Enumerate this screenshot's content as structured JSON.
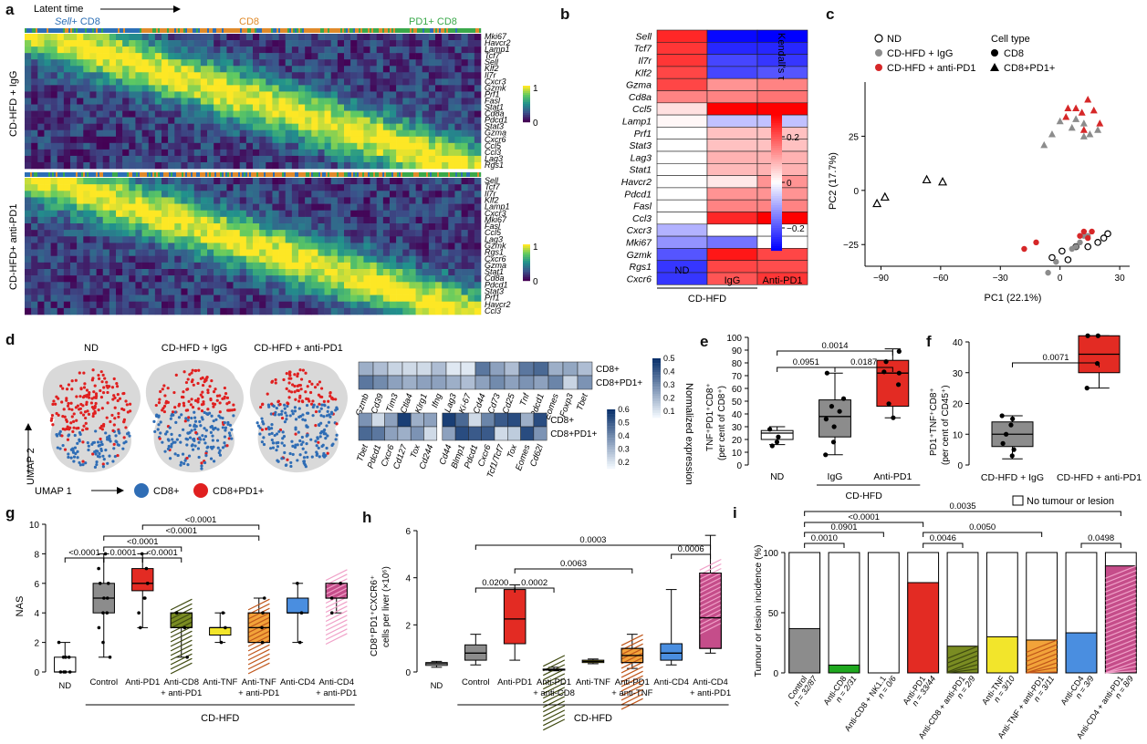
{
  "panel_labels": {
    "a": "a",
    "b": "b",
    "c": "c",
    "d": "d",
    "e": "e",
    "f": "f",
    "g": "g",
    "h": "h",
    "i": "i"
  },
  "panel_a": {
    "latent_time": "Latent time",
    "stage_sell": "Sell",
    "stage_sell_suffix": "+ CD8",
    "stage_cd8": "CD8",
    "stage_pd1": "PD1+ CD8",
    "group1": "CD-HFD + IgG",
    "group2": "CD-HFD+ anti-PD1",
    "genes1": [
      "Mki67",
      "Havcr2",
      "Lamp1",
      "Tcf7",
      "Sell",
      "Klf2",
      "Il7r",
      "Cxcr3",
      "Gzmk",
      "Prf1",
      "Fasl",
      "Stat1",
      "Cd8a",
      "Pdcd1",
      "Stat3",
      "Gzma",
      "Cxcr6",
      "Ccl5",
      "Ccl3",
      "Lag3",
      "Rgs1"
    ],
    "genes2": [
      "Sell",
      "Tcf7",
      "Il7r",
      "Klf2",
      "Lamp1",
      "Cxcr3",
      "Mki67",
      "Fasl",
      "Ccl5",
      "Lag3",
      "Gzmk",
      "Rgs1",
      "Cxcr6",
      "Gzma",
      "Stat1",
      "Cd8a",
      "Pdcd1",
      "Stat3",
      "Prf1",
      "Havcr2",
      "Ccl3"
    ],
    "colorbar_max": "1",
    "colorbar_min": "0"
  },
  "panel_b": {
    "genes": [
      "Sell",
      "Tcf7",
      "Il7r",
      "Klf2",
      "Gzma",
      "Cd8a",
      "Ccl5",
      "Lamp1",
      "Prf1",
      "Stat3",
      "Lag3",
      "Stat1",
      "Havcr2",
      "Pdcd1",
      "Fasl",
      "Ccl3",
      "Cxcr3",
      "Mki67",
      "Gzmk",
      "Rgs1",
      "Cxcr6"
    ],
    "columns": [
      "ND",
      "IgG",
      "Anti-PD1"
    ],
    "group": "CD-HFD",
    "colorbar_title": "Kendall's τ",
    "colorbar_ticks": [
      "0.2",
      "0",
      "−0.2"
    ],
    "values": [
      [
        0.28,
        -0.32,
        -0.33
      ],
      [
        0.26,
        -0.28,
        -0.28
      ],
      [
        0.26,
        -0.24,
        -0.26
      ],
      [
        0.24,
        -0.24,
        -0.22
      ],
      [
        0.24,
        0.14,
        0.16
      ],
      [
        0.16,
        0.16,
        0.18
      ],
      [
        0.04,
        0.33,
        0.33
      ],
      [
        0.01,
        -0.08,
        -0.08
      ],
      [
        0.0,
        0.08,
        0.08
      ],
      [
        0.0,
        0.08,
        0.08
      ],
      [
        0.0,
        0.1,
        0.1
      ],
      [
        0.0,
        0.09,
        0.1
      ],
      [
        0.0,
        0.03,
        0.14
      ],
      [
        0.0,
        0.14,
        0.14
      ],
      [
        0.0,
        0.16,
        0.16
      ],
      [
        0.0,
        0.28,
        0.33
      ],
      [
        -0.1,
        0.0,
        0.0
      ],
      [
        -0.14,
        -0.18,
        0.0
      ],
      [
        -0.22,
        0.3,
        0.24
      ],
      [
        -0.26,
        0.24,
        0.23
      ],
      [
        -0.26,
        0.22,
        0.26
      ]
    ]
  },
  "panel_c": {
    "legend": {
      "nd": "ND",
      "igg": "CD-HFD + IgG",
      "apd1": "CD-HFD + anti-PD1",
      "celltype": "Cell type",
      "cd8": "CD8",
      "cd8pd1": "CD8+PD1+"
    },
    "xlabel": "PC1 (22.1%)",
    "ylabel": "PC2 (17.7%)",
    "xticks": [
      "−90",
      "−60",
      "−30",
      "0",
      "30"
    ],
    "yticks": [
      "25",
      "0",
      "−25"
    ],
    "colors": {
      "nd": "#ffffff",
      "igg": "#8c8c8c",
      "apd1": "#d62728"
    }
  },
  "chart_data": [
    {
      "type": "scatter",
      "panel": "c",
      "xlabel": "PC1 (22.1%)",
      "ylabel": "PC2 (17.7%)",
      "xlim": [
        -98,
        35
      ],
      "ylim": [
        -35,
        50
      ],
      "series": [
        {
          "name": "ND",
          "marker": "circle",
          "points": [
            [
              24,
              -20
            ],
            [
              22,
              -22
            ],
            [
              19,
              -24
            ],
            [
              14,
              -26
            ],
            [
              8,
              -26
            ],
            [
              1,
              -28
            ],
            [
              4,
              -32
            ],
            [
              -4,
              -31
            ]
          ]
        },
        {
          "name": "ND",
          "marker": "triangle",
          "points": [
            [
              -92,
              -6
            ],
            [
              -88,
              -3
            ],
            [
              -67,
              5
            ],
            [
              -59,
              4
            ]
          ]
        },
        {
          "name": "CD-HFD + IgG",
          "marker": "circle",
          "points": [
            [
              12,
              -21
            ],
            [
              14,
              -21
            ],
            [
              10,
              -24
            ],
            [
              8,
              -26
            ],
            [
              6,
              -27
            ],
            [
              -2,
              -33
            ],
            [
              -6,
              -38
            ]
          ]
        },
        {
          "name": "CD-HFD + IgG",
          "marker": "triangle",
          "points": [
            [
              -8,
              21
            ],
            [
              -4,
              26
            ],
            [
              0,
              32
            ],
            [
              6,
              29
            ],
            [
              8,
              33
            ],
            [
              12,
              31
            ],
            [
              15,
              26
            ],
            [
              19,
              28
            ],
            [
              12,
              25
            ]
          ]
        },
        {
          "name": "CD-HFD + anti-PD1",
          "marker": "circle",
          "points": [
            [
              12,
              -19
            ],
            [
              16,
              -19
            ],
            [
              14,
              -22
            ],
            [
              -12,
              -24
            ],
            [
              -18,
              -27
            ],
            [
              10,
              -21
            ]
          ]
        },
        {
          "name": "CD-HFD + anti-PD1",
          "marker": "triangle",
          "points": [
            [
              3,
              34
            ],
            [
              8,
              38
            ],
            [
              14,
              42
            ],
            [
              17,
              37
            ],
            [
              11,
              36
            ],
            [
              20,
              31
            ],
            [
              12,
              28
            ],
            [
              4,
              38
            ]
          ]
        }
      ]
    },
    {
      "type": "heatmap",
      "panel": "d",
      "rows": [
        "CD8+",
        "CD8+PD1+"
      ],
      "columns": [
        "Gzmb",
        "Cd39",
        "Tim3",
        "Ctla4",
        "Klrg1",
        "Ifng",
        "Lag3",
        "Ki-67",
        "Cd44",
        "Cd73",
        "Cd25",
        "Tnf",
        "Pdcd1",
        "Eomes",
        "Foxp3",
        "Tbet"
      ],
      "values": [
        [
          0.25,
          0.2,
          0.12,
          0.1,
          0.1,
          0.2,
          0.05,
          0.05,
          0.45,
          0.3,
          0.2,
          0.45,
          0.5,
          0.25,
          0.28,
          0.2
        ],
        [
          0.45,
          0.38,
          0.3,
          0.25,
          0.3,
          0.3,
          0.25,
          0.2,
          0.3,
          0.38,
          0.3,
          0.35,
          0.3,
          0.4,
          0.12,
          0.35
        ]
      ],
      "colorbar_ticks": [
        "0.5",
        "0.4",
        "0.3",
        "0.2",
        "0.1"
      ]
    },
    {
      "type": "heatmap",
      "panel": "d",
      "rows": [
        "CD8+",
        "CD8+PD1+"
      ],
      "columns": [
        "Tbet",
        "Pdcd1",
        "Cxcr6",
        "Cd127",
        "Tox",
        "Cd244",
        "Cd44",
        "Blmp1",
        "Pdcd1",
        "Cxcr6",
        "Tcf1/Tcf7",
        "Tox",
        "Eomes",
        "Cd62l"
      ],
      "values": [
        [
          0.35,
          0.1,
          0.3,
          0.65,
          0.25,
          0.3,
          0.65,
          0.5,
          0.1,
          0.4,
          0.55,
          0.6,
          0.25,
          0.6
        ],
        [
          0.5,
          0.45,
          0.3,
          0.25,
          0.35,
          0.1,
          0.3,
          0.6,
          0.55,
          0.55,
          0.1,
          0.15,
          0.6,
          0.35
        ]
      ],
      "colorbar_ticks": [
        "0.6",
        "0.5",
        "0.4",
        "0.3",
        "0.2"
      ]
    },
    {
      "type": "box",
      "panel": "e",
      "categories": [
        "ND",
        "IgG",
        "Anti-PD1"
      ],
      "ylabel": "TNF+PD1+CD8+ (per cent of CD8+)",
      "ylim": [
        0,
        100
      ],
      "box": [
        [
          16,
          20,
          25,
          27,
          30
        ],
        [
          8,
          22,
          38,
          51,
          72
        ],
        [
          37,
          46,
          72,
          82,
          91
        ]
      ],
      "points": [
        [
          18,
          22,
          28,
          15
        ],
        [
          8,
          18,
          30,
          36,
          42,
          46,
          52,
          72
        ],
        [
          37,
          48,
          63,
          72,
          73,
          81,
          89
        ]
      ],
      "pvalues": [
        {
          "a": "ND",
          "b": "IgG",
          "p": "0.0951"
        },
        {
          "a": "IgG",
          "b": "Anti-PD1",
          "p": "0.0187"
        },
        {
          "a": "ND",
          "b": "Anti-PD1",
          "p": "0.0014"
        }
      ]
    },
    {
      "type": "box",
      "panel": "f",
      "categories": [
        "CD-HFD + IgG",
        "CD-HFD + anti-PD1"
      ],
      "ylabel": "PD1+TNF+CD8+ (per cent of CD45+)",
      "ylim": [
        0,
        40
      ],
      "box": [
        [
          2,
          6,
          10,
          14,
          16
        ],
        [
          25,
          30,
          36,
          42,
          42
        ]
      ],
      "points": [
        [
          3,
          5,
          7,
          10,
          13,
          15,
          16
        ],
        [
          25,
          33,
          42,
          42
        ]
      ],
      "pvalues": [
        {
          "a": "CD-HFD + IgG",
          "b": "CD-HFD + anti-PD1",
          "p": "0.0071"
        }
      ]
    },
    {
      "type": "box",
      "panel": "g",
      "categories": [
        "ND",
        "Control",
        "Anti-PD1",
        "Anti-CD8 + anti-PD1",
        "Anti-TNF",
        "Anti-TNF + anti-PD1",
        "Anti-CD4",
        "Anti-CD4 + anti-PD1"
      ],
      "ylabel": "NAS",
      "ylim": [
        0,
        10
      ],
      "box": [
        [
          0,
          0,
          0,
          1,
          2
        ],
        [
          1,
          4,
          5,
          6,
          8
        ],
        [
          3,
          5.5,
          6,
          7,
          8
        ],
        [
          1,
          3,
          3,
          4,
          4
        ],
        [
          2,
          2.5,
          3,
          3,
          4
        ],
        [
          2,
          2,
          3,
          4,
          5
        ],
        [
          2,
          4,
          4,
          5,
          6
        ],
        [
          4,
          5,
          5,
          6,
          6
        ]
      ],
      "pvalues": [
        {
          "a": "ND",
          "b": "Control",
          "p": "<0.0001"
        },
        {
          "a": "Control",
          "b": "Anti-PD1",
          "p": "0.0001"
        },
        {
          "a": "Anti-PD1",
          "b": "Anti-CD8 + anti-PD1",
          "p": "<0.0001"
        },
        {
          "a": "Control",
          "b": "Anti-CD8 + anti-PD1",
          "p": "<0.0001"
        },
        {
          "a": "Control",
          "b": "Anti-TNF + anti-PD1",
          "p": "<0.0001"
        },
        {
          "a": "Anti-PD1",
          "b": "Anti-TNF + anti-PD1",
          "p": "<0.0001"
        }
      ]
    },
    {
      "type": "box",
      "panel": "h",
      "categories": [
        "ND",
        "Control",
        "Anti-PD1",
        "Anti-PD1 + anti-CD8",
        "Anti-TNF",
        "Anti-PD1 + anti-TNF",
        "Anti-CD4",
        "Anti-CD4 + anti-PD1"
      ],
      "ylabel": "CD8+PD1+CXCR6+ cells per liver (×10⁶)",
      "ylim": [
        0,
        6
      ],
      "box": [
        [
          0.2,
          0.28,
          0.35,
          0.4,
          0.45
        ],
        [
          0.3,
          0.5,
          0.8,
          1.15,
          1.6
        ],
        [
          0.5,
          1.2,
          2.25,
          3.5,
          3.7
        ],
        [
          0.05,
          0.08,
          0.1,
          0.12,
          0.2
        ],
        [
          0.35,
          0.4,
          0.45,
          0.5,
          0.55
        ],
        [
          0.15,
          0.4,
          0.7,
          1.0,
          1.6
        ],
        [
          0.3,
          0.5,
          0.8,
          1.2,
          3.5
        ],
        [
          0.8,
          1.0,
          2.3,
          4.2,
          5.8
        ]
      ],
      "pvalues": [
        {
          "a": "Control",
          "b": "Anti-PD1",
          "p": "0.0200"
        },
        {
          "a": "Anti-PD1",
          "b": "Anti-PD1 + anti-CD8",
          "p": "0.0002"
        },
        {
          "a": "Anti-PD1",
          "b": "Anti-PD1 + anti-TNF",
          "p": "0.0063"
        },
        {
          "a": "Anti-CD4",
          "b": "Anti-CD4 + anti-PD1",
          "p": "0.0006"
        },
        {
          "a": "Control",
          "b": "Anti-CD4 + anti-PD1",
          "p": "0.0003"
        }
      ]
    },
    {
      "type": "bar",
      "panel": "i",
      "categories": [
        "Control",
        "Anti-CD8",
        "Anti-CD8 + NK1.1",
        "Anti-PD1",
        "Anti-CD8 + anti-PD1",
        "Anti-TNF",
        "Anti-TNF + anti-PD1",
        "Anti-CD4",
        "Anti-CD4 + anti-PD1"
      ],
      "counts": [
        "n = 32/87",
        "n = 2/31",
        "n = 0/6",
        "n = 33/44",
        "n = 2/9",
        "n = 3/10",
        "n = 3/11",
        "n = 3/9",
        "n = 8/9"
      ],
      "values": [
        36.8,
        6.5,
        0,
        75,
        22.2,
        30,
        27.3,
        33.3,
        88.9
      ],
      "ylabel": "Tumour or lesion incidence (%)",
      "ylim": [
        0,
        100
      ],
      "legend": "No tumour or lesion",
      "pvalues": [
        {
          "a": "Control",
          "b": "Anti-CD8",
          "p": "0.0010"
        },
        {
          "a": "Control",
          "b": "Anti-CD8 + NK1.1",
          "p": "0.0901"
        },
        {
          "a": "Control",
          "b": "Anti-PD1",
          "p": "<0.0001"
        },
        {
          "a": "Anti-PD1",
          "b": "Anti-CD8 + anti-PD1",
          "p": "0.0046"
        },
        {
          "a": "Anti-PD1",
          "b": "Anti-TNF + anti-PD1",
          "p": "0.0050"
        },
        {
          "a": "Anti-CD4",
          "b": "Anti-CD4 + anti-PD1",
          "p": "0.0498"
        },
        {
          "a": "Control",
          "b": "Anti-CD4 + anti-PD1",
          "p": "0.0035"
        }
      ]
    }
  ],
  "panel_d": {
    "umap_titles": [
      "ND",
      "CD-HFD + IgG",
      "CD-HFD + anti-PD1"
    ],
    "umap1": "UMAP 1",
    "umap2": "UMAP 2",
    "legend_cd8": "CD8+",
    "legend_pd1": "CD8+PD1+",
    "heat_row1": "CD8+",
    "heat_row2": "CD8+PD1+",
    "colorbar_title": "Normalized expression"
  },
  "panel_e": {
    "group": "CD-HFD",
    "yticks": [
      "0",
      "10",
      "20",
      "30",
      "40",
      "50",
      "60",
      "70",
      "80",
      "90",
      "100"
    ]
  },
  "panel_f": {
    "yticks": [
      "0",
      "10",
      "20",
      "30",
      "40"
    ]
  },
  "panel_g": {
    "group": "CD-HFD"
  },
  "panel_h": {
    "group": "CD-HFD"
  },
  "panel_i": {}
}
